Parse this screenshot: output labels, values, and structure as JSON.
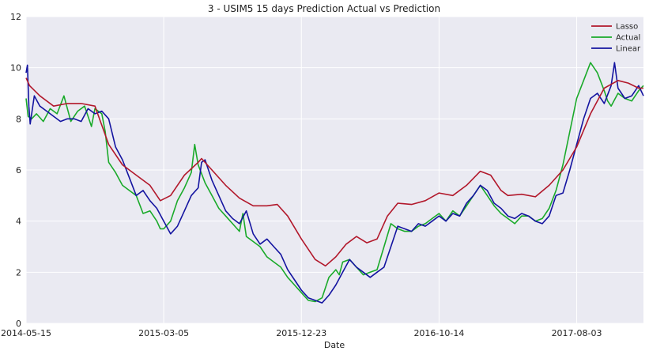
{
  "chart_data": {
    "type": "line",
    "title": "3 - USIM5 15 days Prediction Actual vs Prediction",
    "xlabel": "Date",
    "ylabel": "",
    "x_ticks": [
      "2014-05-15",
      "2015-03-05",
      "2015-12-23",
      "2016-10-14",
      "2017-08-03"
    ],
    "x_tick_index": [
      0,
      200,
      400,
      600,
      800
    ],
    "xlim": [
      0,
      897
    ],
    "ylim": [
      0,
      12
    ],
    "y_ticks": [
      0,
      2,
      4,
      6,
      8,
      10,
      12
    ],
    "grid": true,
    "legend_position": "top-right",
    "colors": {
      "background": "#eaeaf2",
      "grid": "#ffffff",
      "Lasso": "#b2182b",
      "Actual": "#1aaa2a",
      "Linear": "#1414a0"
    },
    "series": [
      {
        "name": "Lasso",
        "x": [
          0,
          5,
          20,
          40,
          60,
          80,
          100,
          120,
          140,
          160,
          180,
          195,
          210,
          230,
          250,
          255,
          270,
          290,
          310,
          330,
          350,
          365,
          380,
          400,
          420,
          435,
          450,
          465,
          480,
          495,
          510,
          525,
          540,
          560,
          580,
          600,
          620,
          640,
          660,
          675,
          690,
          700,
          720,
          740,
          760,
          780,
          800,
          820,
          840,
          860,
          875,
          890,
          897
        ],
        "values": [
          9.6,
          9.3,
          8.9,
          8.5,
          8.6,
          8.6,
          8.5,
          7.0,
          6.2,
          5.8,
          5.4,
          4.8,
          5.0,
          5.8,
          6.3,
          6.45,
          6.0,
          5.4,
          4.9,
          4.6,
          4.6,
          4.65,
          4.2,
          3.3,
          2.5,
          2.25,
          2.6,
          3.1,
          3.4,
          3.15,
          3.3,
          4.2,
          4.7,
          4.65,
          4.8,
          5.1,
          5.0,
          5.4,
          5.95,
          5.8,
          5.2,
          5.0,
          5.05,
          4.95,
          5.4,
          6.0,
          6.9,
          8.2,
          9.2,
          9.5,
          9.4,
          9.2,
          9.2
        ]
      },
      {
        "name": "Actual",
        "x": [
          0,
          3,
          8,
          15,
          25,
          35,
          45,
          55,
          65,
          75,
          85,
          90,
          95,
          100,
          105,
          110,
          115,
          120,
          130,
          140,
          150,
          160,
          170,
          180,
          190,
          195,
          200,
          210,
          220,
          230,
          240,
          245,
          250,
          260,
          270,
          280,
          290,
          300,
          310,
          315,
          320,
          330,
          340,
          350,
          360,
          370,
          380,
          390,
          400,
          410,
          420,
          430,
          440,
          450,
          455,
          460,
          470,
          480,
          490,
          500,
          510,
          520,
          530,
          540,
          550,
          560,
          570,
          580,
          590,
          600,
          610,
          620,
          630,
          640,
          650,
          660,
          670,
          680,
          690,
          700,
          710,
          720,
          730,
          740,
          750,
          760,
          770,
          780,
          790,
          800,
          810,
          820,
          830,
          840,
          845,
          850,
          860,
          870,
          880,
          890,
          897
        ],
        "values": [
          8.8,
          8.1,
          8.0,
          8.2,
          7.9,
          8.4,
          8.2,
          8.9,
          7.9,
          8.3,
          8.5,
          8.1,
          7.7,
          8.4,
          8.3,
          8.2,
          7.5,
          6.3,
          5.9,
          5.4,
          5.2,
          5.0,
          4.3,
          4.4,
          4.0,
          3.7,
          3.7,
          4.0,
          4.8,
          5.3,
          5.9,
          7.0,
          6.2,
          5.5,
          5.0,
          4.5,
          4.2,
          3.9,
          3.6,
          4.3,
          3.4,
          3.2,
          3.0,
          2.6,
          2.4,
          2.2,
          1.8,
          1.5,
          1.2,
          0.9,
          0.85,
          1.0,
          1.8,
          2.1,
          1.9,
          2.4,
          2.5,
          2.2,
          1.9,
          2.0,
          2.1,
          3.0,
          3.9,
          3.7,
          3.6,
          3.6,
          3.8,
          3.9,
          4.1,
          4.3,
          4.0,
          4.4,
          4.2,
          4.6,
          5.0,
          5.4,
          5.0,
          4.6,
          4.3,
          4.1,
          3.9,
          4.2,
          4.2,
          4.0,
          4.1,
          4.5,
          5.2,
          6.2,
          7.5,
          8.8,
          9.5,
          10.2,
          9.8,
          9.1,
          8.7,
          8.5,
          9.0,
          8.8,
          8.7,
          9.1,
          9.3
        ]
      },
      {
        "name": "Linear",
        "x": [
          0,
          2,
          4,
          6,
          12,
          20,
          30,
          40,
          50,
          60,
          70,
          80,
          90,
          100,
          110,
          120,
          130,
          140,
          150,
          160,
          170,
          180,
          190,
          200,
          210,
          220,
          230,
          240,
          250,
          255,
          260,
          270,
          280,
          290,
          300,
          310,
          320,
          330,
          340,
          350,
          360,
          370,
          380,
          390,
          400,
          410,
          420,
          430,
          440,
          450,
          460,
          470,
          480,
          490,
          500,
          510,
          520,
          530,
          540,
          550,
          560,
          570,
          580,
          590,
          600,
          610,
          620,
          630,
          640,
          650,
          660,
          670,
          680,
          690,
          700,
          710,
          720,
          730,
          740,
          750,
          760,
          770,
          780,
          790,
          800,
          810,
          820,
          830,
          840,
          850,
          855,
          860,
          870,
          880,
          890,
          897
        ],
        "values": [
          9.8,
          10.1,
          8.5,
          7.8,
          8.9,
          8.5,
          8.3,
          8.1,
          7.9,
          8.0,
          8.0,
          7.9,
          8.4,
          8.2,
          8.3,
          8.0,
          6.9,
          6.4,
          5.7,
          5.0,
          5.2,
          4.8,
          4.5,
          4.0,
          3.5,
          3.8,
          4.4,
          5.0,
          5.3,
          6.3,
          6.4,
          5.6,
          5.0,
          4.4,
          4.1,
          3.9,
          4.4,
          3.5,
          3.1,
          3.3,
          3.0,
          2.7,
          2.1,
          1.7,
          1.3,
          1.0,
          0.9,
          0.8,
          1.1,
          1.5,
          2.0,
          2.5,
          2.2,
          2.0,
          1.8,
          2.0,
          2.2,
          3.0,
          3.8,
          3.7,
          3.6,
          3.9,
          3.8,
          4.0,
          4.2,
          4.0,
          4.3,
          4.2,
          4.7,
          5.0,
          5.4,
          5.2,
          4.7,
          4.5,
          4.2,
          4.1,
          4.3,
          4.2,
          4.0,
          3.9,
          4.2,
          5.0,
          5.1,
          6.0,
          7.0,
          8.0,
          8.8,
          9.0,
          8.6,
          9.3,
          10.2,
          9.2,
          8.8,
          8.9,
          9.3,
          8.9
        ]
      }
    ]
  }
}
